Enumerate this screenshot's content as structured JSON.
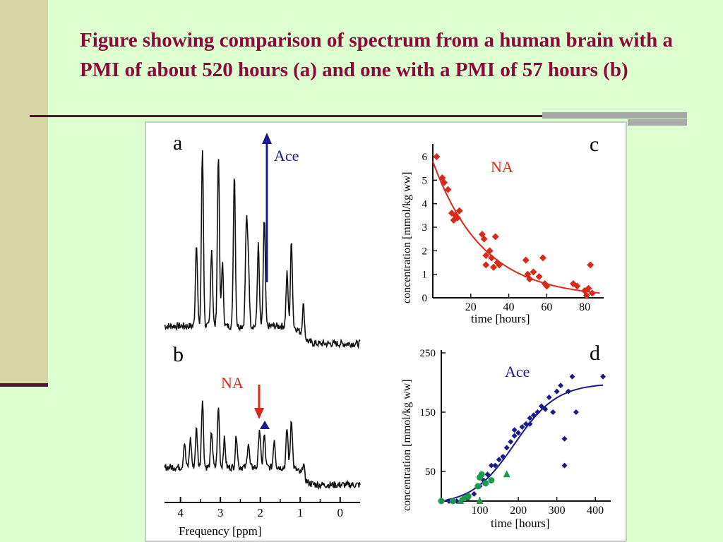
{
  "slide": {
    "title": "Figure showing comparison of spectrum from a human brain with a PMI of  about 520 hours (a) and  one with a PMI of 57 hours (b)",
    "colors": {
      "title": "#8b0a3a",
      "background": "#ddffd0",
      "band": "#d6d6a4",
      "accent_line": "#5a0f3a"
    }
  },
  "chart_data": [
    {
      "panel": "a",
      "type": "line",
      "annotation": "Ace",
      "annotation_color": "#1a1a8c",
      "xlabel": "Frequency [ppm]",
      "xlim": [
        4.4,
        -0.5
      ],
      "x_reversed": true,
      "peaks_ppm": [
        3.6,
        3.45,
        3.22,
        3.05,
        2.95,
        2.65,
        2.35,
        2.3,
        2.05,
        1.9,
        1.33,
        1.22,
        0.92
      ],
      "peak_heights": [
        120,
        250,
        110,
        245,
        90,
        220,
        140,
        90,
        115,
        150,
        75,
        120,
        45
      ],
      "baseline": 30,
      "baseline_right": 5
    },
    {
      "panel": "b",
      "type": "line",
      "annotations": [
        {
          "text": "NA",
          "color": "#d62a1a"
        }
      ],
      "xlabel": "Frequency [ppm]",
      "x_ticks": [
        "4",
        "3",
        "2",
        "1",
        "0"
      ],
      "x_tick_values": [
        4,
        3,
        2,
        1,
        0
      ],
      "xlim": [
        4.4,
        -0.5
      ],
      "x_reversed": true,
      "peaks_ppm": [
        3.9,
        3.75,
        3.6,
        3.45,
        3.22,
        3.05,
        2.9,
        2.6,
        2.3,
        2.02,
        1.9,
        1.65,
        1.33,
        1.22,
        0.92
      ],
      "peak_heights": [
        35,
        40,
        55,
        95,
        50,
        85,
        40,
        45,
        35,
        55,
        45,
        40,
        55,
        70,
        20
      ],
      "baseline": 30,
      "baseline_right": 5
    },
    {
      "panel": "c",
      "type": "scatter",
      "annotation": "NA",
      "annotation_color": "#d62a1a",
      "xlabel": "time [hours]",
      "ylabel": "concentration [mmol/kg ww]",
      "xlim": [
        0,
        90
      ],
      "ylim": [
        0,
        6.3
      ],
      "x_ticks": [
        20,
        40,
        60,
        80
      ],
      "y_ticks": [
        0,
        1,
        2,
        3,
        4,
        5,
        6
      ],
      "color": "#d62a1a",
      "points": [
        [
          2,
          6.0
        ],
        [
          5,
          5.1
        ],
        [
          6,
          4.9
        ],
        [
          8,
          4.6
        ],
        [
          10,
          3.6
        ],
        [
          11,
          3.3
        ],
        [
          12,
          3.5
        ],
        [
          13,
          3.4
        ],
        [
          14,
          3.7
        ],
        [
          26,
          2.7
        ],
        [
          27,
          2.5
        ],
        [
          28,
          1.8
        ],
        [
          28,
          1.4
        ],
        [
          30,
          2.0
        ],
        [
          31,
          1.7
        ],
        [
          32,
          1.3
        ],
        [
          33,
          2.6
        ],
        [
          34,
          1.5
        ],
        [
          35,
          1.4
        ],
        [
          49,
          1.6
        ],
        [
          50,
          1.0
        ],
        [
          51,
          0.8
        ],
        [
          53,
          1.1
        ],
        [
          56,
          0.9
        ],
        [
          58,
          1.7
        ],
        [
          59,
          0.6
        ],
        [
          60,
          0.5
        ],
        [
          74,
          0.6
        ],
        [
          76,
          0.5
        ],
        [
          80,
          0.3
        ],
        [
          81,
          0.1
        ],
        [
          82,
          0.4
        ],
        [
          83,
          1.4
        ],
        [
          84,
          0.2
        ]
      ],
      "fit": {
        "model": "exponential",
        "y0": 5.8,
        "rate": 0.038
      }
    },
    {
      "panel": "d",
      "type": "scatter",
      "annotation": "Ace",
      "annotation_color": "#1a1a8c",
      "xlabel": "time [hours]",
      "ylabel": "concentration [mmol/kg ww]",
      "xlim": [
        0,
        440
      ],
      "ylim": [
        0,
        250
      ],
      "x_ticks": [
        100,
        200,
        300,
        400
      ],
      "y_ticks": [
        50,
        150,
        250
      ],
      "series": [
        {
          "marker": "diamond",
          "color": "#1a1a8c",
          "points": [
            [
              20,
              0
            ],
            [
              40,
              0
            ],
            [
              55,
              2
            ],
            [
              70,
              5
            ],
            [
              85,
              12
            ],
            [
              100,
              25
            ],
            [
              110,
              35
            ],
            [
              120,
              45
            ],
            [
              130,
              60
            ],
            [
              140,
              60
            ],
            [
              150,
              70
            ],
            [
              160,
              75
            ],
            [
              170,
              90
            ],
            [
              180,
              100
            ],
            [
              190,
              110
            ],
            [
              200,
              115
            ],
            [
              210,
              125
            ],
            [
              220,
              130
            ],
            [
              230,
              140
            ],
            [
              240,
              145
            ],
            [
              250,
              150
            ],
            [
              260,
              160
            ],
            [
              270,
              155
            ],
            [
              280,
              175
            ],
            [
              290,
              150
            ],
            [
              300,
              185
            ],
            [
              310,
              195
            ],
            [
              320,
              60
            ],
            [
              320,
              105
            ],
            [
              330,
              185
            ],
            [
              340,
              210
            ],
            [
              350,
              150
            ],
            [
              420,
              210
            ],
            [
              230,
              130
            ],
            [
              190,
              120
            ]
          ]
        },
        {
          "marker": "circle",
          "color": "#1a9a4a",
          "points": [
            [
              0,
              0
            ],
            [
              30,
              0
            ],
            [
              60,
              5
            ],
            [
              70,
              8
            ],
            [
              95,
              25
            ],
            [
              100,
              40
            ],
            [
              105,
              45
            ],
            [
              115,
              30
            ],
            [
              130,
              35
            ]
          ]
        },
        {
          "marker": "triangle",
          "color": "#1a9a4a",
          "points": [
            [
              50,
              0
            ],
            [
              100,
              0
            ],
            [
              170,
              45
            ]
          ]
        }
      ],
      "fit": {
        "model": "sigmoid",
        "ymax": 205,
        "x50": 190,
        "scale": 55
      }
    }
  ]
}
